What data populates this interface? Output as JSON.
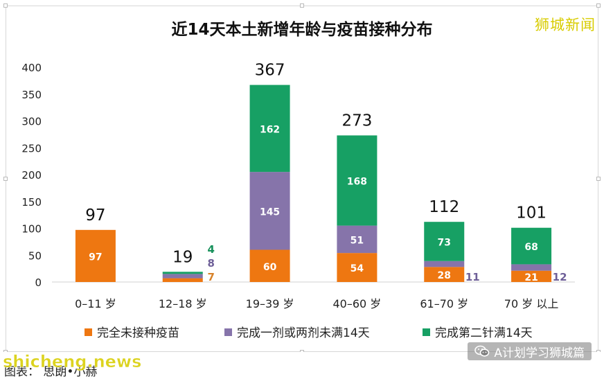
{
  "chart_data": {
    "type": "bar",
    "stacked": true,
    "title": "近14天本土新增年龄与疫苗接种分布",
    "categories": [
      "0–11 岁",
      "12–18 岁",
      "19–39 岁",
      "40–60 岁",
      "61–70 岁",
      "70 岁 以上"
    ],
    "totals": [
      97,
      19,
      367,
      273,
      112,
      101
    ],
    "series": [
      {
        "name": "完全未接种疫苗",
        "color": "#ee7711",
        "values": [
          97,
          7,
          60,
          54,
          28,
          21
        ]
      },
      {
        "name": "完成一剂或两剂未满14天",
        "color": "#8674aa",
        "values": [
          0,
          8,
          145,
          51,
          11,
          12
        ]
      },
      {
        "name": "完成第二针满14天",
        "color": "#17a064",
        "values": [
          0,
          4,
          162,
          168,
          73,
          68
        ]
      }
    ],
    "ylim": [
      0,
      400
    ],
    "yticks": [
      0,
      50,
      100,
      150,
      200,
      250,
      300,
      350,
      400
    ],
    "grid": false,
    "legend_position": "bottom"
  },
  "brand": "狮城新闻",
  "caption": "图表： 思朗•小赫",
  "watermark": "shicheng.news",
  "account": "A计划学习狮城篇",
  "icons": {
    "account": "wechat-icon"
  }
}
